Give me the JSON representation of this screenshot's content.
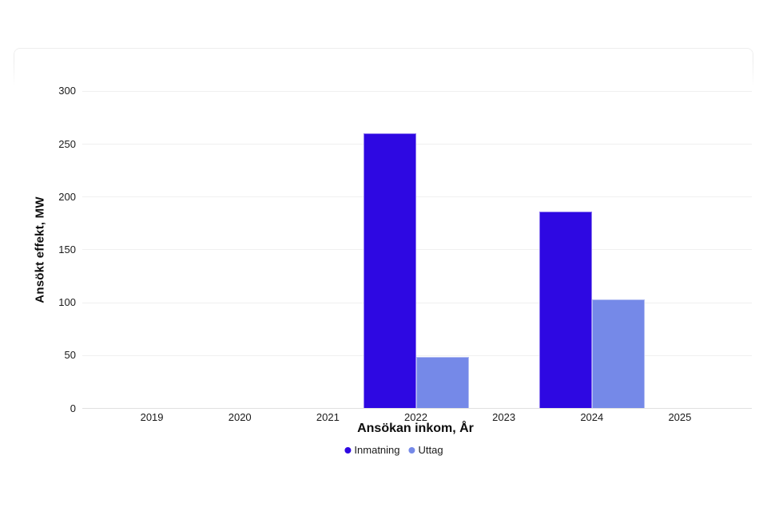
{
  "card": {
    "border_color": "#ededed"
  },
  "chart_data": {
    "type": "bar",
    "categories": [
      "2019",
      "2020",
      "2021",
      "2022",
      "2023",
      "2024",
      "2025"
    ],
    "series": [
      {
        "name": "Inmatning",
        "color": "#2e08e2",
        "values": [
          0,
          0,
          0,
          260,
          0,
          186,
          0
        ]
      },
      {
        "name": "Uttag",
        "color": "#7589e8",
        "values": [
          0,
          0,
          0,
          49,
          0,
          103,
          0
        ]
      }
    ],
    "xlabel": "Ansökan inkom, År",
    "ylabel": "Ansökt effekt, MW",
    "y_ticks": [
      0,
      50,
      100,
      150,
      200,
      250,
      300
    ],
    "ylim": [
      0,
      300
    ],
    "grid": true,
    "legend_position": "bottom",
    "gridline_color": "#f0f0f0",
    "axis_line_color": "#e0e0e0",
    "tick_color": "#1a1a1a"
  }
}
